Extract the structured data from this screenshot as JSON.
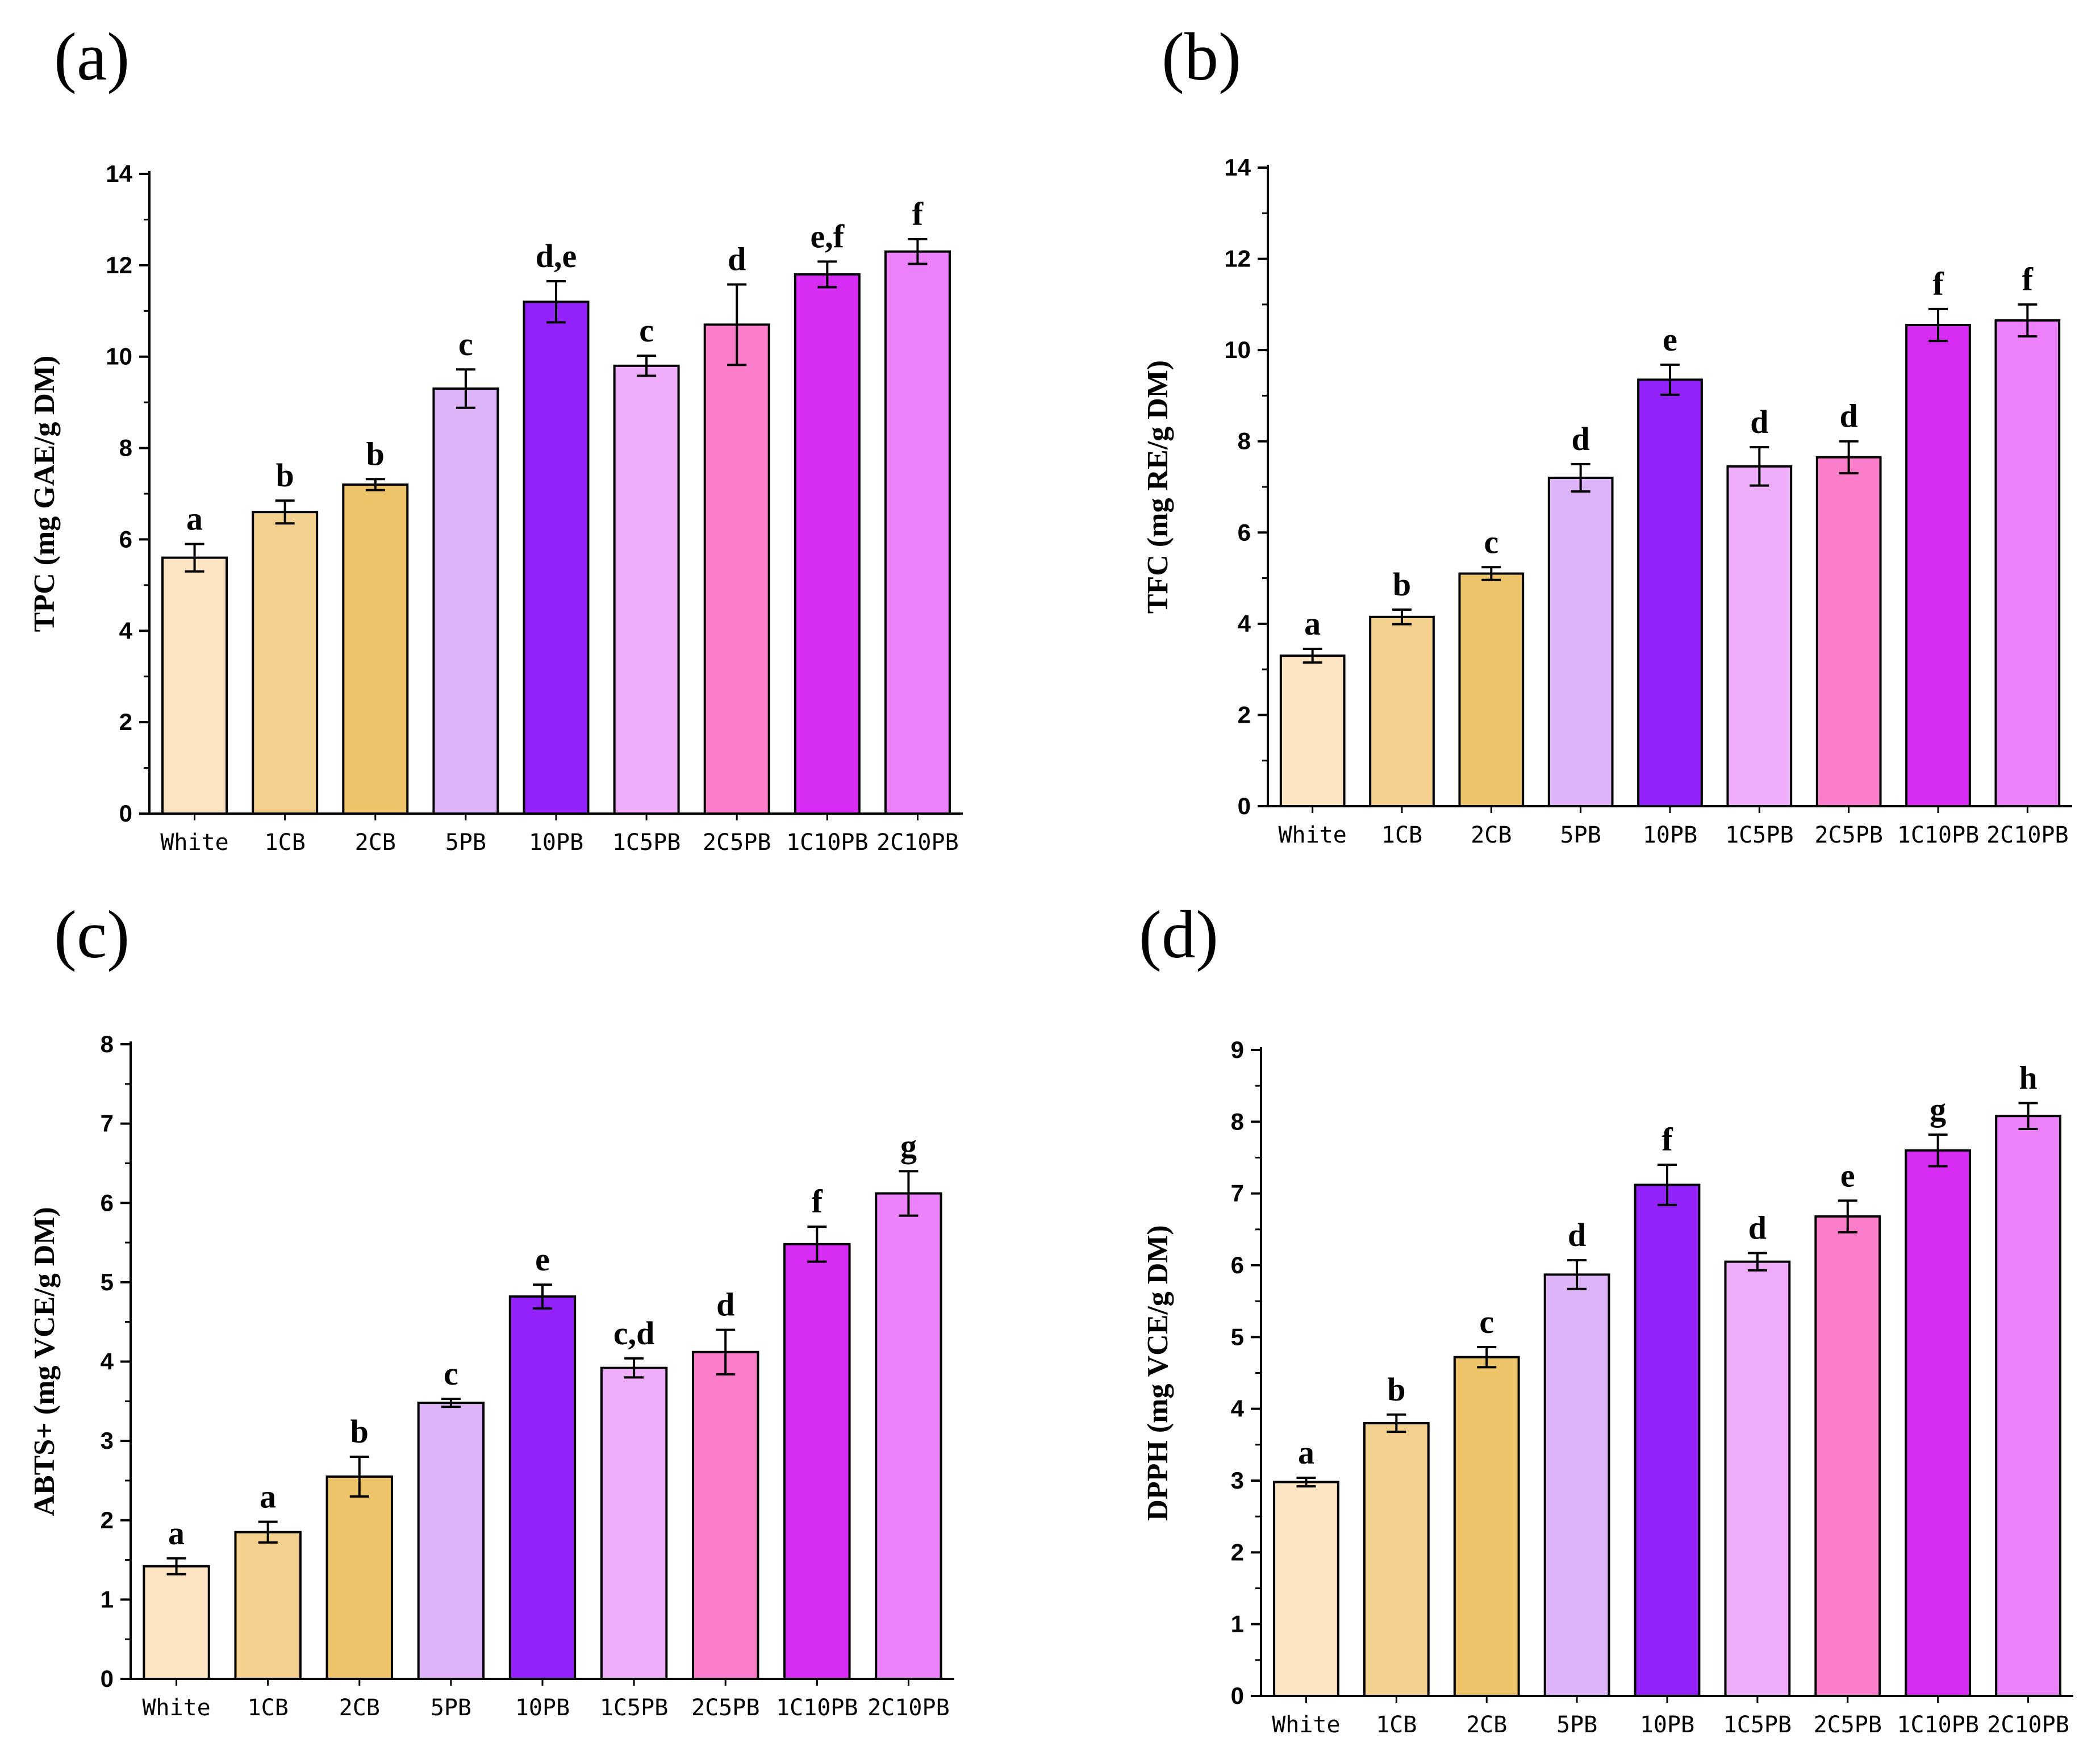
{
  "figure": {
    "colors": {
      "White": "#FDE4C2",
      "1CB": "#F4D08F",
      "2CB": "#EEC46A",
      "5PB": "#DDB4F8",
      "10PB": "#9221FB",
      "1C5PB": "#EDADF9",
      "2C5PB": "#FC7DC9",
      "1C10PB": "#D62CF4",
      "2C10PB": "#EB82F9"
    }
  },
  "chart_data": [
    {
      "panel_label": "(a)",
      "type": "bar",
      "title": "",
      "xlabel": "",
      "ylabel": "TPC (mg GAE/g DM)",
      "categories": [
        "White",
        "1CB",
        "2CB",
        "5PB",
        "10PB",
        "1C5PB",
        "2C5PB",
        "1C10PB",
        "2C10PB"
      ],
      "values": [
        5.6,
        6.6,
        7.2,
        9.3,
        11.2,
        9.8,
        10.7,
        11.8,
        12.3
      ],
      "errors": [
        0.3,
        0.25,
        0.12,
        0.42,
        0.45,
        0.22,
        0.88,
        0.28,
        0.27
      ],
      "significance": [
        "a",
        "b",
        "b",
        "c",
        "d,e",
        "c",
        "d",
        "e,f",
        "f"
      ],
      "ylim": [
        0,
        14
      ],
      "yticks": [
        0,
        2,
        4,
        6,
        8,
        10,
        12,
        14
      ],
      "ytick_labels": [
        "0",
        "2",
        "4",
        "6",
        "8",
        "10",
        "12",
        "14"
      ]
    },
    {
      "panel_label": "(b)",
      "type": "bar",
      "title": "",
      "xlabel": "",
      "ylabel": "TFC (mg RE/g DM)",
      "categories": [
        "White",
        "1CB",
        "2CB",
        "5PB",
        "10PB",
        "1C5PB",
        "2C5PB",
        "1C10PB",
        "2C10PB"
      ],
      "values": [
        3.3,
        4.15,
        5.1,
        7.2,
        9.35,
        7.45,
        7.65,
        10.55,
        10.65
      ],
      "errors": [
        0.15,
        0.16,
        0.14,
        0.3,
        0.33,
        0.42,
        0.35,
        0.35,
        0.35
      ],
      "significance": [
        "a",
        "b",
        "c",
        "d",
        "e",
        "d",
        "d",
        "f",
        "f"
      ],
      "ylim": [
        0,
        14
      ],
      "yticks": [
        0,
        2,
        4,
        6,
        8,
        10,
        12,
        14
      ],
      "ytick_labels": [
        "0",
        "2",
        "4",
        "6",
        "8",
        "10",
        "12",
        "14"
      ]
    },
    {
      "panel_label": "(c)",
      "type": "bar",
      "title": "",
      "xlabel": "",
      "ylabel": "ABTS+ (mg VCE/g DM)",
      "categories": [
        "White",
        "1CB",
        "2CB",
        "5PB",
        "10PB",
        "1C5PB",
        "2C5PB",
        "1C10PB",
        "2C10PB"
      ],
      "values": [
        1.42,
        1.85,
        2.55,
        3.48,
        4.82,
        3.92,
        4.12,
        5.48,
        6.12
      ],
      "errors": [
        0.1,
        0.13,
        0.25,
        0.05,
        0.15,
        0.12,
        0.28,
        0.22,
        0.28
      ],
      "significance": [
        "a",
        "a",
        "b",
        "c",
        "e",
        "c,d",
        "d",
        "f",
        "g"
      ],
      "ylim": [
        0,
        8
      ],
      "yticks": [
        0,
        1,
        2,
        3,
        4,
        5,
        6,
        7,
        8
      ],
      "ytick_labels": [
        "0",
        "1",
        "2",
        "3",
        "4",
        "5",
        "6",
        "7",
        "8"
      ]
    },
    {
      "panel_label": "(d)",
      "type": "bar",
      "title": "",
      "xlabel": "",
      "ylabel": "DPPH (mg VCE/g DM)",
      "categories": [
        "White",
        "1CB",
        "2CB",
        "5PB",
        "10PB",
        "1C5PB",
        "2C5PB",
        "1C10PB",
        "2C10PB"
      ],
      "values": [
        2.98,
        3.8,
        4.72,
        5.87,
        7.12,
        6.05,
        6.68,
        7.6,
        8.08
      ],
      "errors": [
        0.06,
        0.12,
        0.14,
        0.2,
        0.28,
        0.12,
        0.22,
        0.22,
        0.18
      ],
      "significance": [
        "a",
        "b",
        "c",
        "d",
        "f",
        "d",
        "e",
        "g",
        "h"
      ],
      "ylim": [
        0,
        9
      ],
      "yticks": [
        0,
        1,
        2,
        3,
        4,
        5,
        6,
        7,
        8,
        9
      ],
      "ytick_labels": [
        "0",
        "1",
        "2",
        "3",
        "4",
        "5",
        "6",
        "7",
        "8",
        "9"
      ]
    }
  ]
}
